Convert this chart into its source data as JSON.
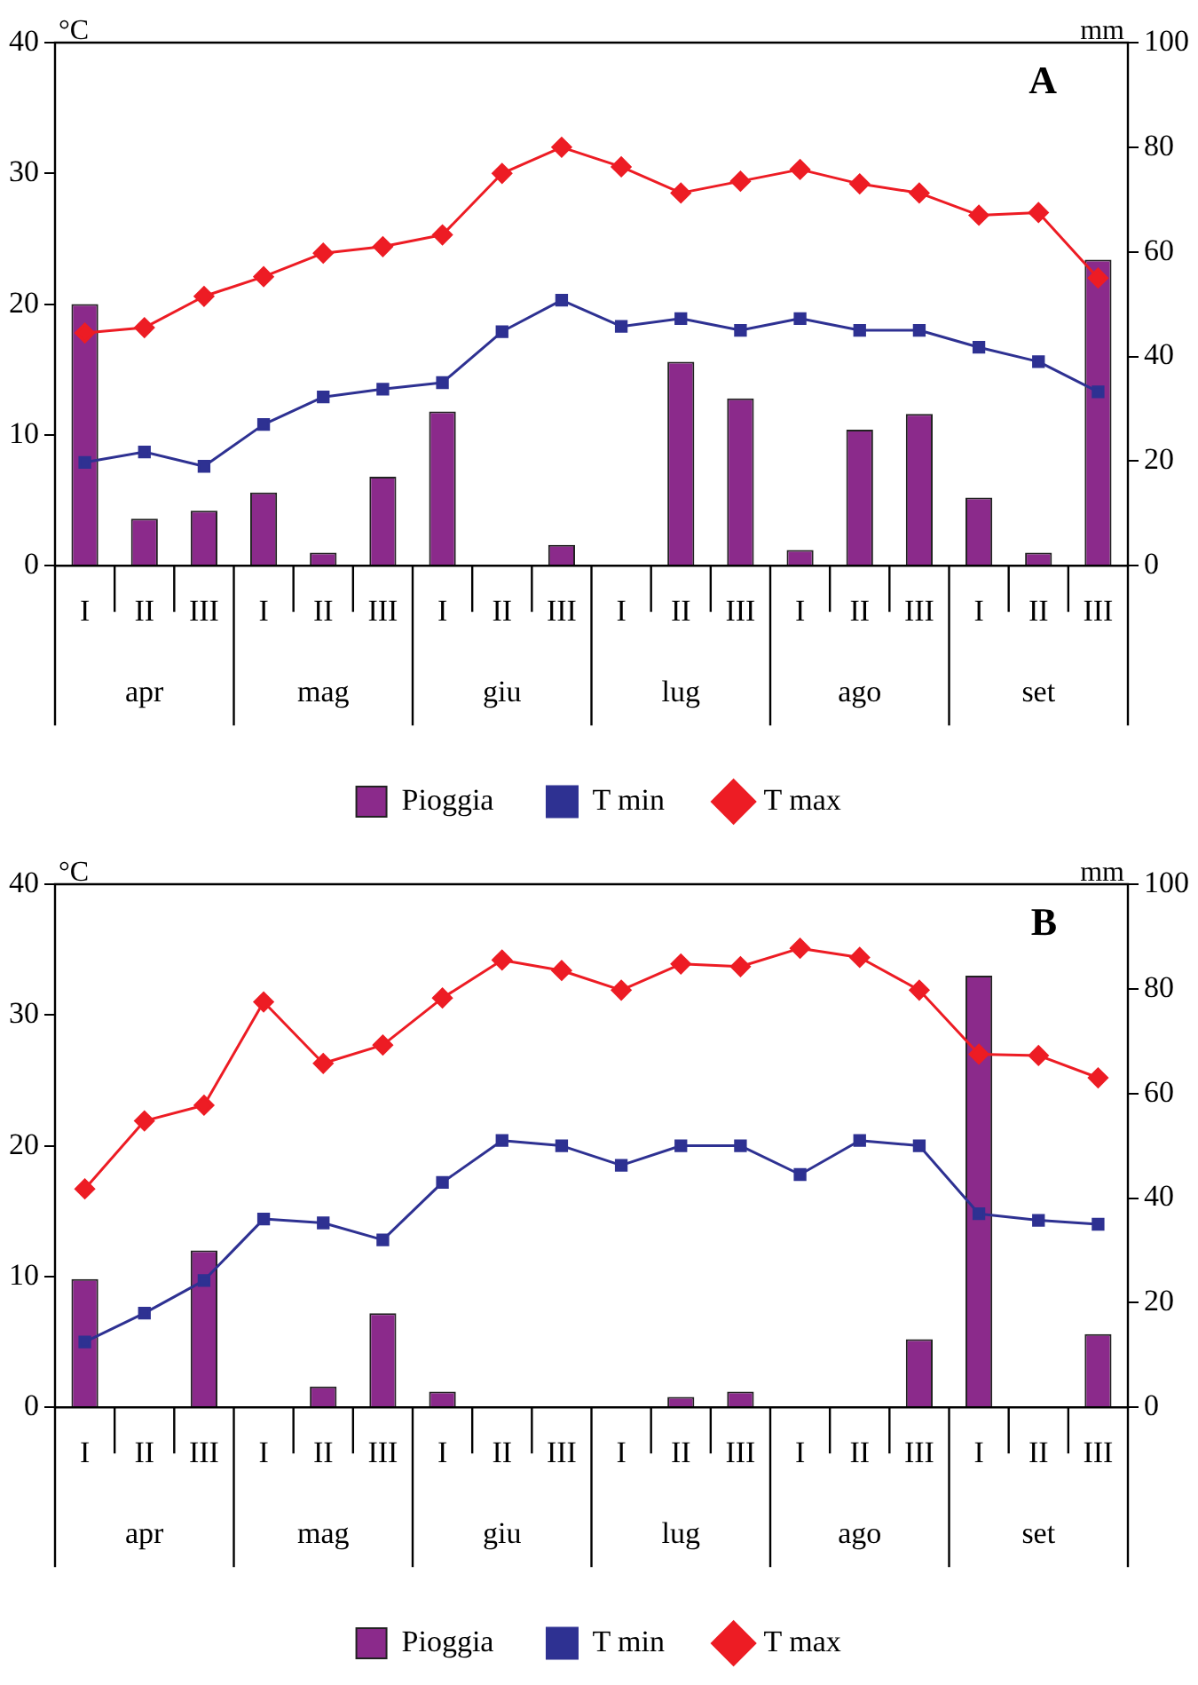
{
  "chart_data": [
    {
      "type": "bar",
      "title": "A",
      "ylabel": "°C",
      "y2label": "mm",
      "categories": [
        "I",
        "II",
        "III",
        "I",
        "II",
        "III",
        "I",
        "II",
        "III",
        "I",
        "II",
        "III",
        "I",
        "II",
        "III",
        "I",
        "II",
        "III"
      ],
      "annotations": [
        "apr",
        "mag",
        "giu",
        "lug",
        "ago",
        "set"
      ],
      "series": [
        {
          "name": "Pioggia",
          "axis": "y2",
          "color": "#8b2a8b",
          "values": [
            50,
            9,
            10.5,
            14,
            2.5,
            17,
            29.5,
            null,
            4,
            null,
            39,
            32,
            3,
            26,
            29,
            13,
            2.5,
            58.5
          ]
        },
        {
          "name": "T min",
          "type": "line",
          "marker": "square",
          "color": "#2e3192",
          "values": [
            7.9,
            8.7,
            7.6,
            10.8,
            12.9,
            13.5,
            14,
            17.9,
            20.3,
            18.3,
            18.9,
            18,
            18.9,
            18,
            18,
            16.7,
            15.6,
            13.3
          ]
        },
        {
          "name": "T max",
          "type": "line",
          "marker": "diamond",
          "color": "#ed1c24",
          "values": [
            17.8,
            18.2,
            20.6,
            22.1,
            23.9,
            24.4,
            25.3,
            30,
            32,
            30.5,
            28.5,
            29.4,
            30.3,
            29.2,
            28.5,
            26.8,
            27,
            22
          ]
        }
      ],
      "ylim": [
        0,
        40
      ],
      "yticks": [
        0,
        10,
        20,
        30,
        40
      ],
      "y2lim": [
        0,
        100
      ],
      "y2ticks": [
        0,
        20,
        40,
        60,
        80,
        100
      ],
      "grid": false,
      "legend": "bottom"
    },
    {
      "type": "bar",
      "title": "B",
      "ylabel": "°C",
      "y2label": "mm",
      "categories": [
        "I",
        "II",
        "III",
        "I",
        "II",
        "III",
        "I",
        "II",
        "III",
        "I",
        "II",
        "III",
        "I",
        "II",
        "III",
        "I",
        "II",
        "III"
      ],
      "annotations": [
        "apr",
        "mag",
        "giu",
        "lug",
        "ago",
        "set"
      ],
      "series": [
        {
          "name": "Pioggia",
          "axis": "y2",
          "color": "#8b2a8b",
          "values": [
            24.5,
            null,
            30,
            null,
            4,
            18,
            3,
            null,
            null,
            null,
            2,
            3,
            null,
            null,
            13,
            82.5,
            null,
            14
          ]
        },
        {
          "name": "T min",
          "type": "line",
          "marker": "square",
          "color": "#2e3192",
          "values": [
            5,
            7.2,
            9.7,
            14.4,
            14.1,
            12.8,
            17.2,
            20.4,
            20,
            18.5,
            20,
            20,
            17.8,
            20.4,
            20,
            14.8,
            14.3,
            14
          ]
        },
        {
          "name": "T max",
          "type": "line",
          "marker": "diamond",
          "color": "#ed1c24",
          "values": [
            16.7,
            21.9,
            23.1,
            31,
            26.3,
            27.7,
            31.3,
            34.2,
            33.4,
            31.9,
            33.9,
            33.7,
            35.1,
            34.4,
            31.9,
            27,
            26.9,
            25.2
          ]
        }
      ],
      "ylim": [
        0,
        40
      ],
      "yticks": [
        0,
        10,
        20,
        30,
        40
      ],
      "y2lim": [
        0,
        100
      ],
      "y2ticks": [
        0,
        20,
        40,
        60,
        80,
        100
      ],
      "grid": false,
      "legend": "bottom"
    }
  ]
}
